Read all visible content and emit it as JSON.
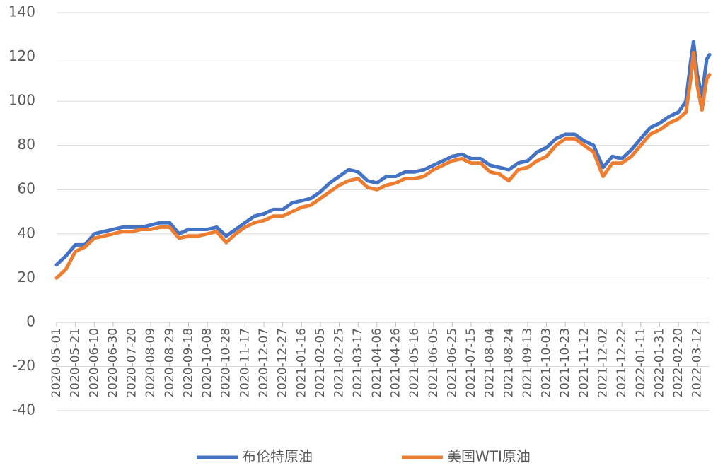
{
  "chart_data": {
    "type": "line",
    "x": [
      "2020-05-01",
      "2020-05-11",
      "2020-05-21",
      "2020-05-31",
      "2020-06-10",
      "2020-06-20",
      "2020-06-30",
      "2020-07-10",
      "2020-07-20",
      "2020-07-30",
      "2020-08-09",
      "2020-08-19",
      "2020-08-29",
      "2020-09-08",
      "2020-09-18",
      "2020-09-28",
      "2020-10-08",
      "2020-10-18",
      "2020-10-28",
      "2020-11-07",
      "2020-11-17",
      "2020-11-27",
      "2020-12-07",
      "2020-12-17",
      "2020-12-27",
      "2021-01-06",
      "2021-01-16",
      "2021-01-26",
      "2021-02-05",
      "2021-02-15",
      "2021-02-25",
      "2021-03-07",
      "2021-03-17",
      "2021-03-27",
      "2021-04-06",
      "2021-04-16",
      "2021-04-26",
      "2021-05-06",
      "2021-05-16",
      "2021-05-26",
      "2021-06-05",
      "2021-06-15",
      "2021-06-25",
      "2021-07-05",
      "2021-07-15",
      "2021-07-25",
      "2021-08-04",
      "2021-08-14",
      "2021-08-24",
      "2021-09-03",
      "2021-09-13",
      "2021-09-23",
      "2021-10-03",
      "2021-10-13",
      "2021-10-23",
      "2021-11-02",
      "2021-11-12",
      "2021-11-22",
      "2021-12-02",
      "2021-12-12",
      "2021-12-22",
      "2022-01-01",
      "2022-01-11",
      "2022-01-21",
      "2022-01-31",
      "2022-02-10",
      "2022-02-20",
      "2022-02-28",
      "2022-03-05",
      "2022-03-08",
      "2022-03-12",
      "2022-03-17",
      "2022-03-22",
      "2022-03-25"
    ],
    "series": [
      {
        "name": "布伦特原油",
        "color": "#4472c4",
        "values": [
          26,
          30,
          35,
          35,
          40,
          41,
          42,
          43,
          43,
          43,
          44,
          45,
          45,
          40,
          42,
          42,
          42,
          43,
          39,
          42,
          45,
          48,
          49,
          51,
          51,
          54,
          55,
          56,
          59,
          63,
          66,
          69,
          68,
          64,
          63,
          66,
          66,
          68,
          68,
          69,
          71,
          73,
          75,
          76,
          74,
          74,
          71,
          70,
          69,
          72,
          73,
          77,
          79,
          83,
          85,
          85,
          82,
          80,
          70,
          75,
          74,
          78,
          83,
          88,
          90,
          93,
          95,
          100,
          118,
          127,
          112,
          102,
          119,
          121
        ]
      },
      {
        "name": "美国WTI原油",
        "color": "#ed7d31",
        "values": [
          20,
          24,
          32,
          34,
          38,
          39,
          40,
          41,
          41,
          42,
          42,
          43,
          43,
          38,
          39,
          39,
          40,
          41,
          36,
          40,
          43,
          45,
          46,
          48,
          48,
          50,
          52,
          53,
          56,
          59,
          62,
          64,
          65,
          61,
          60,
          62,
          63,
          65,
          65,
          66,
          69,
          71,
          73,
          74,
          72,
          72,
          68,
          67,
          64,
          69,
          70,
          73,
          75,
          80,
          83,
          83,
          80,
          77,
          66,
          72,
          72,
          75,
          80,
          85,
          87,
          90,
          92,
          95,
          110,
          122,
          107,
          96,
          110,
          112
        ]
      }
    ],
    "xlim": [
      "2020-05-01",
      "2022-03-25"
    ],
    "xticks": [
      "2020-05-01",
      "2020-05-21",
      "2020-06-10",
      "2020-06-30",
      "2020-07-20",
      "2020-08-09",
      "2020-08-29",
      "2020-09-18",
      "2020-10-08",
      "2020-10-28",
      "2020-11-17",
      "2020-12-07",
      "2020-12-27",
      "2021-01-16",
      "2021-02-05",
      "2021-02-25",
      "2021-03-17",
      "2021-04-06",
      "2021-04-26",
      "2021-05-16",
      "2021-06-05",
      "2021-06-25",
      "2021-07-15",
      "2021-08-04",
      "2021-08-24",
      "2021-09-13",
      "2021-10-03",
      "2021-10-23",
      "2021-11-12",
      "2021-12-02",
      "2021-12-22",
      "2022-01-11",
      "2022-01-31",
      "2022-02-20",
      "2022-03-12"
    ],
    "ylim": [
      -40,
      140
    ],
    "yticks": [
      -40,
      -20,
      0,
      20,
      40,
      60,
      80,
      100,
      120,
      140
    ],
    "grid": true,
    "legend": "bottom"
  }
}
